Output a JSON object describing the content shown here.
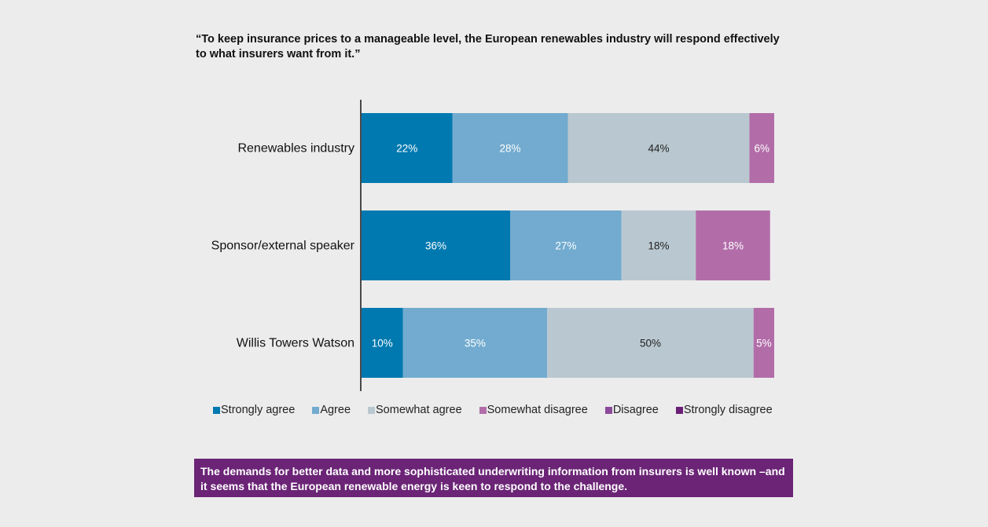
{
  "title": "“To keep insurance prices to a manageable level, the European renewables industry will respond effectively to what insurers want from it.”",
  "colors": {
    "background": "#ececec",
    "callout_bg": "#6b2476",
    "strongly_agree": "#0079b0",
    "agree": "#72abcf",
    "somewhat_agree": "#b9c8d0",
    "somewhat_disagree": "#b26da9",
    "disagree": "#8c4a9a",
    "strongly_disagree": "#6a1f77"
  },
  "chart_data": {
    "type": "bar",
    "orientation": "horizontal",
    "stacked": true,
    "categories": [
      "Renewables industry",
      "Sponsor/external speaker",
      "Willis Towers Watson"
    ],
    "series": [
      {
        "name": "Strongly agree",
        "values": [
          22,
          36,
          10
        ],
        "labels": [
          "22%",
          "36%",
          "10%"
        ],
        "color": "#0079b0",
        "label_color": "#ffffff"
      },
      {
        "name": "Agree",
        "values": [
          28,
          27,
          35
        ],
        "labels": [
          "28%",
          "27%",
          "35%"
        ],
        "color": "#72abcf",
        "label_color": "#ffffff"
      },
      {
        "name": "Somewhat agree",
        "values": [
          44,
          18,
          50
        ],
        "labels": [
          "44%",
          "18%",
          "50%"
        ],
        "color": "#b9c8d0",
        "label_color": "#222222"
      },
      {
        "name": "Somewhat disagree",
        "values": [
          6,
          18,
          5
        ],
        "labels": [
          "6%",
          "18%",
          "5%"
        ],
        "color": "#b26da9",
        "label_color": "#ffffff"
      },
      {
        "name": "Disagree",
        "values": [
          0,
          0,
          0
        ],
        "labels": [
          "",
          "",
          ""
        ],
        "color": "#8c4a9a",
        "label_color": "#ffffff"
      },
      {
        "name": "Strongly disagree",
        "values": [
          0,
          0,
          0
        ],
        "labels": [
          "",
          "",
          ""
        ],
        "color": "#6a1f77",
        "label_color": "#ffffff"
      }
    ],
    "xlim": [
      0,
      100
    ],
    "grid": false,
    "legend_position": "bottom"
  },
  "legend": [
    {
      "label": "Strongly agree",
      "color": "#0079b0"
    },
    {
      "label": "Agree",
      "color": "#72abcf"
    },
    {
      "label": "Somewhat agree",
      "color": "#b9c8d0"
    },
    {
      "label": "Somewhat disagree",
      "color": "#b26da9"
    },
    {
      "label": "Disagree",
      "color": "#8c4a9a"
    },
    {
      "label": "Strongly disagree",
      "color": "#6a1f77"
    }
  ],
  "callout": "The demands for better data and more sophisticated underwriting information from insurers is well known –and it seems that the European renewable energy is keen to respond to the challenge."
}
